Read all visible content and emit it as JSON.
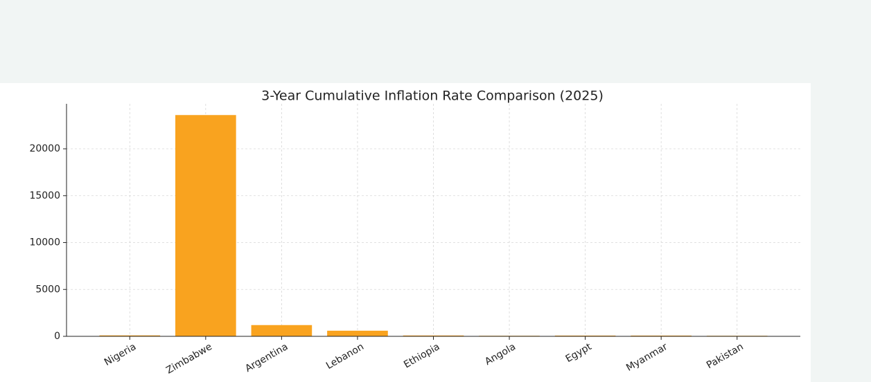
{
  "chart_data": {
    "type": "bar",
    "title": "3-Year Cumulative Inflation Rate Comparison (2025)",
    "categories": [
      "Nigeria",
      "Zimbabwe",
      "Argentina",
      "Lebanon",
      "Ethiopia",
      "Angola",
      "Egypt",
      "Myanmar",
      "Pakistan"
    ],
    "values": [
      100,
      23600,
      1200,
      600,
      90,
      60,
      80,
      80,
      60
    ],
    "color": "#f9a31f",
    "ylim": [
      0,
      24800
    ],
    "yticks": [
      0,
      5000,
      10000,
      15000,
      20000
    ],
    "grid": true
  }
}
